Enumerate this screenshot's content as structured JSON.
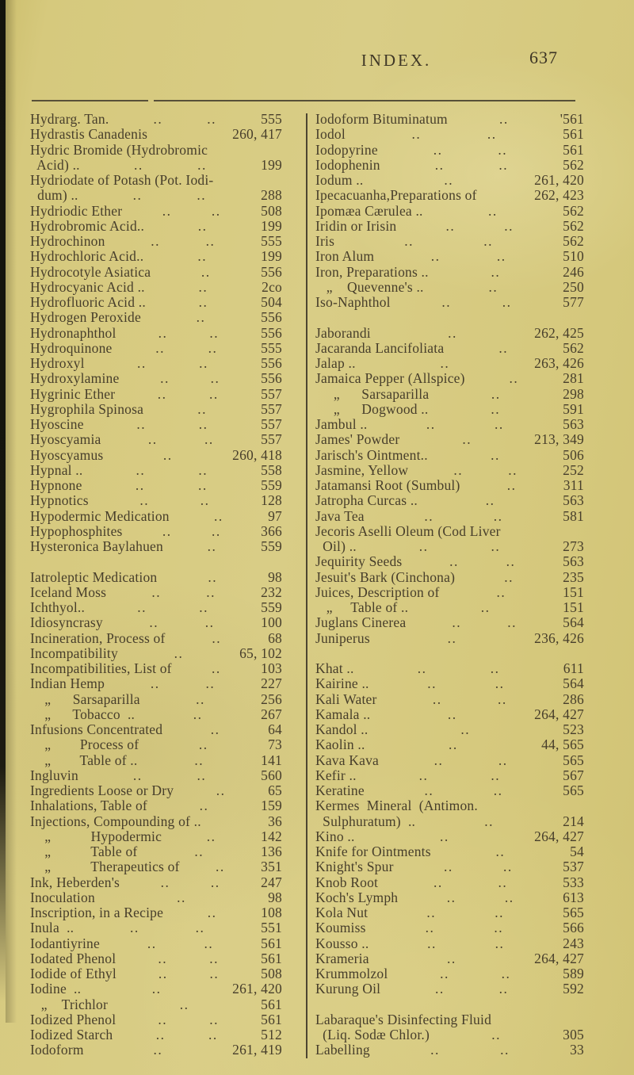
{
  "page": {
    "title": "INDEX.",
    "number": "637",
    "paper_color": "#d6c97d",
    "ink_color": "#473e2b"
  },
  "columns": {
    "left": [
      {
        "label": "Hydrarg. Tan.",
        "dots": 2,
        "ref": "555"
      },
      {
        "label": "Hydrastis Canadenis",
        "dots": 0,
        "ref": "260, 417"
      },
      {
        "label": "Hydric Bromide (Hydrobromic",
        "dots": 0,
        "ref": ""
      },
      {
        "label": "  Acid) ..",
        "dots": 2,
        "ref": "199"
      },
      {
        "label": "Hydriodate of Potash (Pot. Iodi-",
        "dots": 0,
        "ref": ""
      },
      {
        "label": "  dum) ..",
        "dots": 2,
        "ref": "288"
      },
      {
        "label": "Hydriodic Ether",
        "dots": 2,
        "ref": "508"
      },
      {
        "label": "Hydrobromic Acid..",
        "dots": 1,
        "ref": "199"
      },
      {
        "label": "Hydrochinon",
        "dots": 2,
        "ref": "555"
      },
      {
        "label": "Hydrochloric Acid..",
        "dots": 1,
        "ref": "199"
      },
      {
        "label": "Hydrocotyle Asiatica",
        "dots": 1,
        "ref": "556"
      },
      {
        "label": "Hydrocyanic Acid ..",
        "dots": 1,
        "ref": "2co"
      },
      {
        "label": "Hydrofluoric Acid ..",
        "dots": 1,
        "ref": "504"
      },
      {
        "label": "Hydrogen Peroxide",
        "dots": 1,
        "ref": "556"
      },
      {
        "label": "Hydronaphthol",
        "dots": 2,
        "ref": "556"
      },
      {
        "label": "Hydroquinone",
        "dots": 2,
        "ref": "555"
      },
      {
        "label": "Hydroxyl",
        "dots": 2,
        "ref": "556"
      },
      {
        "label": "Hydroxylamine",
        "dots": 2,
        "ref": "556"
      },
      {
        "label": "Hygrinic Ether",
        "dots": 2,
        "ref": "557"
      },
      {
        "label": "Hygrophila Spinosa",
        "dots": 1,
        "ref": "557"
      },
      {
        "label": "Hyoscine",
        "dots": 2,
        "ref": "557"
      },
      {
        "label": "Hyoscyamia",
        "dots": 2,
        "ref": "557"
      },
      {
        "label": "Hyoscyamus",
        "dots": 1,
        "ref": "260, 418"
      },
      {
        "label": "Hypnal ..",
        "dots": 2,
        "ref": "558"
      },
      {
        "label": "Hypnone",
        "dots": 2,
        "ref": "559"
      },
      {
        "label": "Hypnotics",
        "dots": 2,
        "ref": "128"
      },
      {
        "label": "Hypodermic Medication",
        "dots": 1,
        "ref": "97"
      },
      {
        "label": "Hypophosphites",
        "dots": 2,
        "ref": "366"
      },
      {
        "label": "Hysteronica Baylahuen",
        "dots": 1,
        "ref": "559"
      },
      {
        "label": "",
        "dots": 0,
        "ref": ""
      },
      {
        "label": "Iatroleptic Medication",
        "dots": 1,
        "ref": "98"
      },
      {
        "label": "Iceland Moss",
        "dots": 2,
        "ref": "232"
      },
      {
        "label": "Ichthyol..",
        "dots": 2,
        "ref": "559"
      },
      {
        "label": "Idiosyncrasy",
        "dots": 2,
        "ref": "100"
      },
      {
        "label": "Incineration, Process of",
        "dots": 1,
        "ref": "68"
      },
      {
        "label": "Incompatibility",
        "dots": 1,
        "ref": "65, 102"
      },
      {
        "label": "Incompatibilities, List of",
        "dots": 1,
        "ref": "103"
      },
      {
        "label": "Indian Hemp",
        "dots": 2,
        "ref": "227"
      },
      {
        "label": "    „      Sarsaparilla",
        "dots": 1,
        "ref": "256"
      },
      {
        "label": "    „      Tobacco  ..",
        "dots": 1,
        "ref": "267"
      },
      {
        "label": "Infusions Concentrated",
        "dots": 1,
        "ref": "64"
      },
      {
        "label": "    „        Process of",
        "dots": 1,
        "ref": "73"
      },
      {
        "label": "    „        Table of ..",
        "dots": 1,
        "ref": "141"
      },
      {
        "label": "Ingluvin",
        "dots": 2,
        "ref": "560"
      },
      {
        "label": "Ingredients Loose or Dry",
        "dots": 1,
        "ref": "65"
      },
      {
        "label": "Inhalations, Table of",
        "dots": 1,
        "ref": "159"
      },
      {
        "label": "Injections, Compounding of ..",
        "dots": 0,
        "ref": "36"
      },
      {
        "label": "    „           Hypodermic",
        "dots": 1,
        "ref": "142"
      },
      {
        "label": "    „           Table of",
        "dots": 1,
        "ref": "136"
      },
      {
        "label": "    „           Therapeutics of",
        "dots": 1,
        "ref": "351"
      },
      {
        "label": "Ink, Heberden's",
        "dots": 2,
        "ref": "247"
      },
      {
        "label": "Inoculation",
        "dots": 1,
        "ref": "98"
      },
      {
        "label": "Inscription, in a Recipe",
        "dots": 1,
        "ref": "108"
      },
      {
        "label": "Inula  ..",
        "dots": 2,
        "ref": "551"
      },
      {
        "label": "Iodantiyrine",
        "dots": 2,
        "ref": "561"
      },
      {
        "label": "Iodated Phenol",
        "dots": 2,
        "ref": "561"
      },
      {
        "label": "Iodide of Ethyl",
        "dots": 2,
        "ref": "508"
      },
      {
        "label": "Iodine  ..",
        "dots": 1,
        "ref": "261, 420"
      },
      {
        "label": "   „    Trichlor",
        "dots": 1,
        "ref": "561"
      },
      {
        "label": "Iodized Phenol",
        "dots": 2,
        "ref": "561"
      },
      {
        "label": "Iodized Starch",
        "dots": 2,
        "ref": "512"
      },
      {
        "label": "Iodoform",
        "dots": 1,
        "ref": "261, 419"
      }
    ],
    "right": [
      {
        "label": "Iodoform Bituminatum",
        "dots": 1,
        "ref": "'561"
      },
      {
        "label": "Iodol",
        "dots": 2,
        "ref": "561"
      },
      {
        "label": "Iodopyrine",
        "dots": 2,
        "ref": "561"
      },
      {
        "label": "Iodophenin",
        "dots": 2,
        "ref": "562"
      },
      {
        "label": "Iodum ..",
        "dots": 1,
        "ref": "261, 420"
      },
      {
        "label": "Ipecacuanha,Preparations of",
        "dots": 0,
        "ref": "262, 423"
      },
      {
        "label": "Ipomæa Cærulea ..",
        "dots": 1,
        "ref": "562"
      },
      {
        "label": "Iridin or Irisin",
        "dots": 2,
        "ref": "562"
      },
      {
        "label": "Iris",
        "dots": 2,
        "ref": "562"
      },
      {
        "label": "Iron Alum",
        "dots": 2,
        "ref": "510"
      },
      {
        "label": "Iron, Preparations ..",
        "dots": 1,
        "ref": "246"
      },
      {
        "label": "   „    Quevenne's ..",
        "dots": 1,
        "ref": "250"
      },
      {
        "label": "Iso-Naphthol",
        "dots": 2,
        "ref": "577"
      },
      {
        "label": "",
        "dots": 0,
        "ref": ""
      },
      {
        "label": "Jaborandi",
        "dots": 1,
        "ref": "262, 425"
      },
      {
        "label": "Jacaranda Lancifoliata",
        "dots": 1,
        "ref": "562"
      },
      {
        "label": "Jalap ..",
        "dots": 1,
        "ref": "263, 426"
      },
      {
        "label": "Jamaica Pepper (Allspice)",
        "dots": 1,
        "ref": "281"
      },
      {
        "label": "     „      Sarsaparilla",
        "dots": 1,
        "ref": "298"
      },
      {
        "label": "     „      Dogwood ..",
        "dots": 1,
        "ref": "591"
      },
      {
        "label": "Jambul ..",
        "dots": 2,
        "ref": "563"
      },
      {
        "label": "James' Powder",
        "dots": 1,
        "ref": "213, 349"
      },
      {
        "label": "Jarisch's Ointment..",
        "dots": 1,
        "ref": "506"
      },
      {
        "label": "Jasmine, Yellow",
        "dots": 2,
        "ref": "252"
      },
      {
        "label": "Jatamansi Root (Sumbul)",
        "dots": 1,
        "ref": "311"
      },
      {
        "label": "Jatropha Curcas ..",
        "dots": 1,
        "ref": "563"
      },
      {
        "label": "Java Tea",
        "dots": 2,
        "ref": "581"
      },
      {
        "label": "Jecoris Aselli Oleum (Cod Liver",
        "dots": 0,
        "ref": ""
      },
      {
        "label": "  Oil) ..",
        "dots": 2,
        "ref": "273"
      },
      {
        "label": "Jequirity Seeds",
        "dots": 2,
        "ref": "563"
      },
      {
        "label": "Jesuit's Bark (Cinchona)",
        "dots": 1,
        "ref": "235"
      },
      {
        "label": "Juices, Description of",
        "dots": 1,
        "ref": "151"
      },
      {
        "label": "   „     Table of ..",
        "dots": 1,
        "ref": "151"
      },
      {
        "label": "Juglans Cinerea",
        "dots": 2,
        "ref": "564"
      },
      {
        "label": "Juniperus",
        "dots": 1,
        "ref": "236, 426"
      },
      {
        "label": "",
        "dots": 0,
        "ref": ""
      },
      {
        "label": "Khat ..",
        "dots": 2,
        "ref": "611"
      },
      {
        "label": "Kairine ..",
        "dots": 2,
        "ref": "564"
      },
      {
        "label": "Kali Water",
        "dots": 2,
        "ref": "286"
      },
      {
        "label": "Kamala ..",
        "dots": 1,
        "ref": "264, 427"
      },
      {
        "label": "Kandol ..",
        "dots": 1,
        "ref": "523"
      },
      {
        "label": "Kaolin ..",
        "dots": 1,
        "ref": "44, 565"
      },
      {
        "label": "Kava Kava",
        "dots": 2,
        "ref": "565"
      },
      {
        "label": "Kefir ..",
        "dots": 2,
        "ref": "567"
      },
      {
        "label": "Keratine",
        "dots": 2,
        "ref": "565"
      },
      {
        "label": "Kermes  Mineral  (Antimon.",
        "dots": 0,
        "ref": ""
      },
      {
        "label": "  Sulphuratum)  ..",
        "dots": 1,
        "ref": "214"
      },
      {
        "label": "Kino ..",
        "dots": 1,
        "ref": "264, 427"
      },
      {
        "label": "Knife for Ointments",
        "dots": 1,
        "ref": "54"
      },
      {
        "label": "Knight's Spur",
        "dots": 2,
        "ref": "537"
      },
      {
        "label": "Knob Root",
        "dots": 2,
        "ref": "533"
      },
      {
        "label": "Koch's Lymph",
        "dots": 2,
        "ref": "613"
      },
      {
        "label": "Kola Nut",
        "dots": 2,
        "ref": "565"
      },
      {
        "label": "Koumiss",
        "dots": 2,
        "ref": "566"
      },
      {
        "label": "Kousso ..",
        "dots": 2,
        "ref": "243"
      },
      {
        "label": "Krameria",
        "dots": 1,
        "ref": "264, 427"
      },
      {
        "label": "Krummolzol",
        "dots": 2,
        "ref": "589"
      },
      {
        "label": "Kurung Oil",
        "dots": 2,
        "ref": "592"
      },
      {
        "label": "",
        "dots": 0,
        "ref": ""
      },
      {
        "label": "Labaraque's Disinfecting Fluid",
        "dots": 0,
        "ref": ""
      },
      {
        "label": "  (Liq. Sodæ Chlor.)",
        "dots": 1,
        "ref": "305"
      },
      {
        "label": "Labelling",
        "dots": 2,
        "ref": "33"
      }
    ]
  }
}
